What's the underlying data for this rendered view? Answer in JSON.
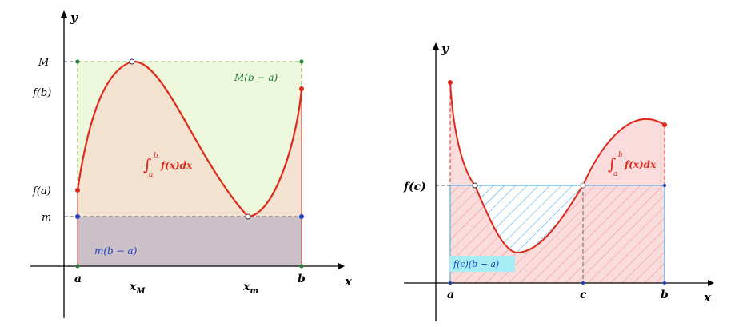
{
  "left": {
    "axis_y": "y",
    "axis_x": "x",
    "y_ticks": {
      "M": "M",
      "fb": "f(b)",
      "fa": "f(a)",
      "m": "m"
    },
    "x_ticks": {
      "a": "a",
      "xM": "x",
      "xM_sub": "M",
      "xm": "x",
      "xm_sub": "m",
      "b": "b"
    },
    "upper_rect_label": "M(b − a)",
    "lower_rect_label": "m(b − a)",
    "integral": {
      "a": "a",
      "b": "b",
      "expr": "f(x)dx"
    },
    "colors": {
      "upper_fill": "#eef8dc",
      "middle_fill": "#f3e2d0",
      "lower_fill": "#cbc0c8",
      "curve": "#e0281b",
      "upper_label": "#1f7a33",
      "lower_label": "#1d3fbf"
    }
  },
  "right": {
    "axis_y": "y",
    "axis_x": "x",
    "y_tick": "f(c)",
    "x_ticks": {
      "a": "a",
      "c": "c",
      "b": "b"
    },
    "rect_label": "f(c)(b − a)",
    "integral": {
      "a": "a",
      "b": "b",
      "expr": "f(x)dx"
    },
    "colors": {
      "curve": "#e0281b",
      "area_fill": "#fbdcdc",
      "hatch_blue": "#3aa0e0",
      "hatch_red": "#ef8a8a",
      "label_bg": "#a8ecf4"
    }
  }
}
